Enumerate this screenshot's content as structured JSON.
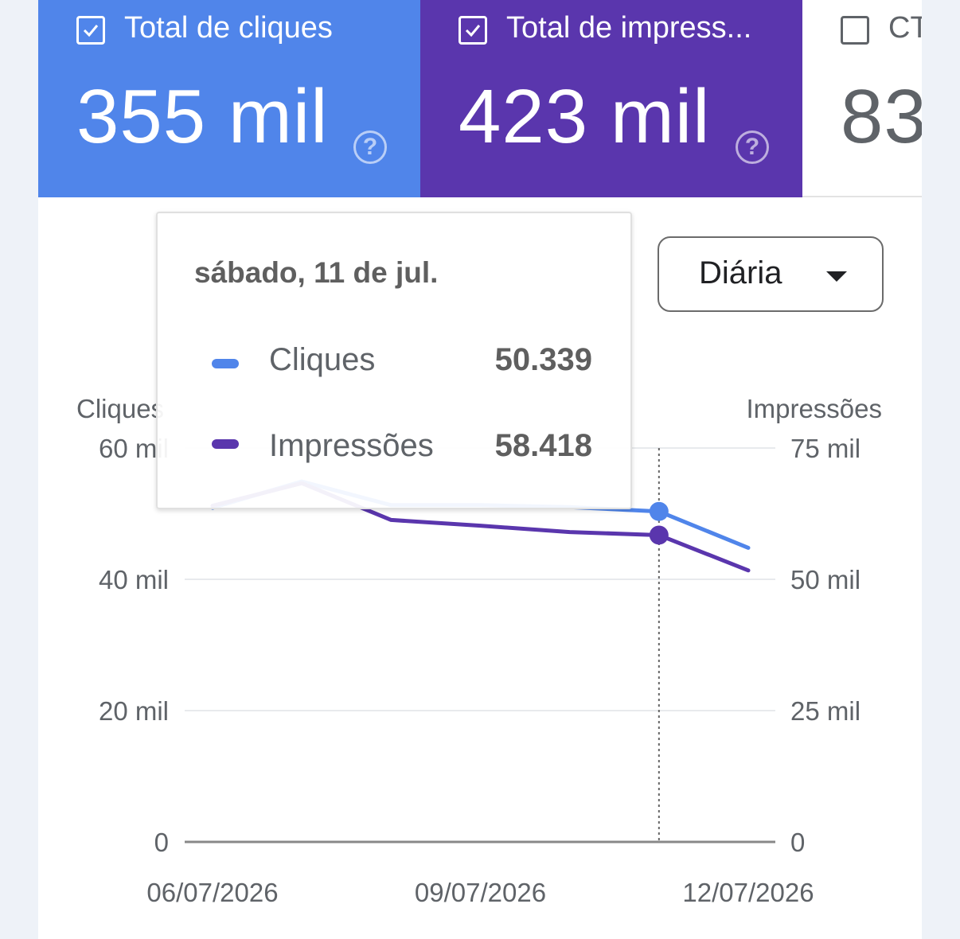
{
  "cards": {
    "clicks": {
      "label": "Total de cliques",
      "value": "355 mil",
      "checked": true,
      "color": "#5085ea"
    },
    "impressions": {
      "label": "Total de impress...",
      "value": "423 mil",
      "checked": true,
      "color": "#5a36ad"
    },
    "ctr": {
      "label": "CT",
      "value": "83",
      "checked": false
    }
  },
  "help_glyph": "?",
  "granularity": {
    "selected": "Diária"
  },
  "tooltip": {
    "date": "sábado, 11 de jul.",
    "rows": [
      {
        "name": "Cliques",
        "value": "50.339",
        "color": "#5085ea"
      },
      {
        "name": "Impressões",
        "value": "58.418",
        "color": "#5a36ad"
      }
    ]
  },
  "chart_data": {
    "type": "line",
    "x": [
      "06/07/2026",
      "07/07/2026",
      "08/07/2026",
      "09/07/2026",
      "10/07/2026",
      "11/07/2026",
      "12/07/2026"
    ],
    "x_tick_labels": [
      "06/07/2026",
      "09/07/2026",
      "12/07/2026"
    ],
    "y_left": {
      "label": "Cliques",
      "ticks": [
        "0",
        "20 mil",
        "40 mil",
        "60 mil"
      ],
      "tick_values": [
        0,
        20000,
        40000,
        60000
      ],
      "range": [
        0,
        60000
      ]
    },
    "y_right": {
      "label": "Impressões",
      "ticks": [
        "0",
        "25 mil",
        "50 mil",
        "75 mil"
      ],
      "tick_values": [
        0,
        25000,
        50000,
        75000
      ],
      "range": [
        0,
        75000
      ]
    },
    "series": [
      {
        "name": "Cliques",
        "axis": "left",
        "color": "#5085ea",
        "values": [
          50900,
          54900,
          51300,
          51300,
          51000,
          50339,
          44800
        ]
      },
      {
        "name": "Impressões",
        "axis": "right",
        "color": "#5a36ad",
        "values": [
          64000,
          68300,
          61300,
          60200,
          59000,
          58418,
          51700
        ]
      }
    ],
    "highlight_index": 5,
    "grid": true
  }
}
